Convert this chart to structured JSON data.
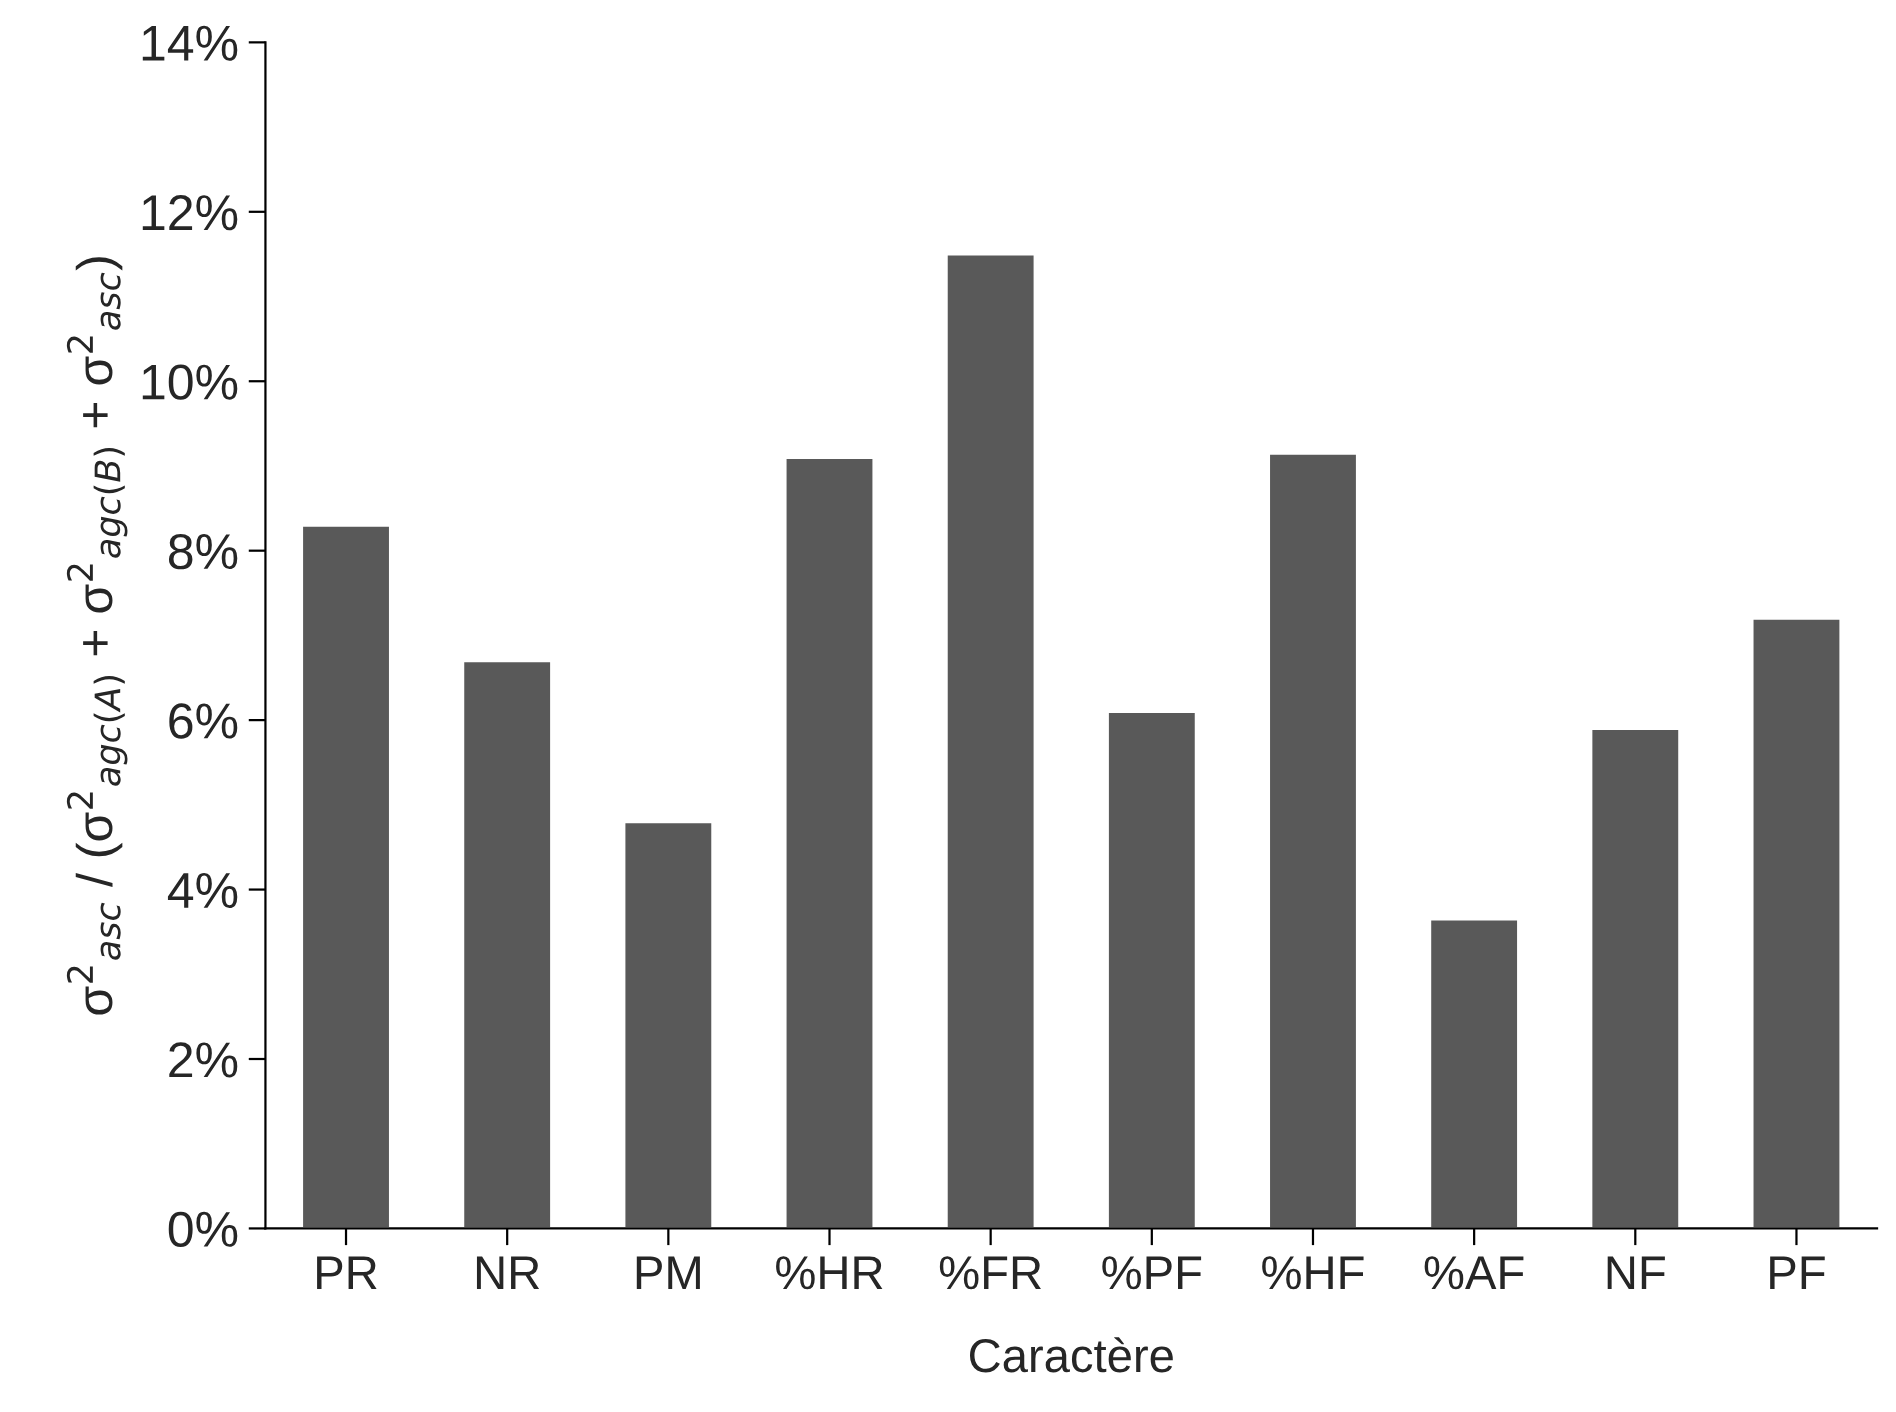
{
  "chart_data": {
    "type": "bar",
    "xlabel": "Caractère",
    "ylabel": "σ$^{2}$$_{asc}$ / (σ$^{2}$$_{agc(A)}$ + σ$^{2}$$_{agc(B)}$ + σ$^{2}$$_{asc}$)",
    "categories": [
      "PR",
      "NR",
      "PM",
      "%HR",
      "%FR",
      "%PF",
      "%HF",
      "%AF",
      "NF",
      "PF"
    ],
    "values": [
      8.3,
      6.7,
      4.8,
      9.1,
      11.5,
      6.1,
      9.15,
      3.65,
      5.9,
      7.2
    ],
    "color": "#595959",
    "ylim": [
      0,
      14
    ],
    "yticks": [
      {
        "value": 0,
        "label": "0%"
      },
      {
        "value": 2,
        "label": "2%"
      },
      {
        "value": 4,
        "label": "4%"
      },
      {
        "value": 6,
        "label": "6%"
      },
      {
        "value": 8,
        "label": "8%"
      },
      {
        "value": 10,
        "label": "10%"
      },
      {
        "value": 12,
        "label": "12%"
      },
      {
        "value": 14,
        "label": "14%"
      }
    ],
    "grid": false
  }
}
